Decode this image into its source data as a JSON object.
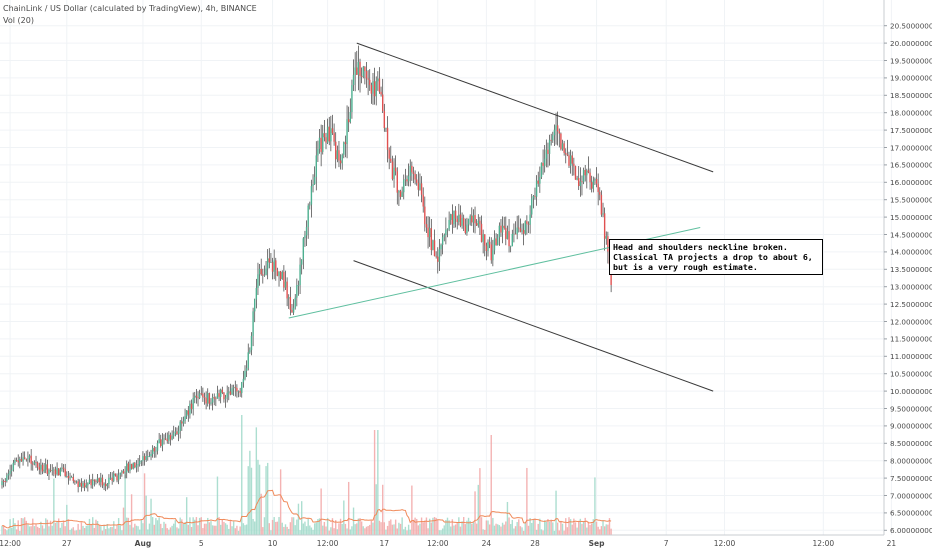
{
  "legend": {
    "title": "ChainLink / US Dollar (calculated by TradingView), 4h, BINANCE",
    "volume": "Vol (20)"
  },
  "annotation": {
    "text": "Head and shoulders neckline broken.  Classical TA projects a drop to about 6, but is a very rough estimate."
  },
  "colors": {
    "up": "#4caf8f",
    "down": "#e05050",
    "wick": "#3a3a3a",
    "volume_up": "#9ed8c8",
    "volume_down": "#f2a6a6",
    "volume_ma": "#f08a5a",
    "trendline": "#3a3a3a",
    "neckline": "#5fbf9f",
    "grid": "#f0f3f6",
    "axis_text": "#4a4a4a"
  },
  "chart_data": {
    "type": "candlestick",
    "symbol": "ChainLink / US Dollar",
    "timeframe": "4h",
    "exchange": "BINANCE",
    "y_axis": {
      "side": "right",
      "range": [
        5.75,
        20.6
      ],
      "ticks": [
        "20.50000000",
        "20.00000000",
        "19.50000000",
        "19.00000000",
        "18.50000000",
        "18.00000000",
        "17.50000000",
        "17.00000000",
        "16.50000000",
        "16.00000000",
        "15.50000000",
        "15.00000000",
        "14.50000000",
        "14.00000000",
        "13.50000000",
        "13.00000000",
        "12.50000000",
        "12.00000000",
        "11.50000000",
        "11.00000000",
        "10.50000000",
        "10.00000000",
        "9.50000000",
        "9.00000000",
        "8.50000000",
        "8.00000000",
        "7.50000000",
        "7.00000000",
        "6.50000000",
        "6.00000000"
      ]
    },
    "x_axis": {
      "ticks": [
        "12:00",
        "27",
        "Aug",
        "5",
        "10",
        "12:00",
        "17",
        "12:00",
        "24",
        "28",
        "Sep",
        "7",
        "12:00",
        "12:00",
        "21"
      ],
      "tick_bars": [
        5,
        40,
        87,
        123,
        167,
        201,
        236,
        269,
        299,
        329,
        367,
        410,
        446,
        507,
        549
      ],
      "total_bars": 560
    },
    "grid": true,
    "volume_overlay": true,
    "close_path": [
      [
        0,
        7.3
      ],
      [
        8,
        7.95
      ],
      [
        16,
        8.05
      ],
      [
        24,
        7.8
      ],
      [
        32,
        7.7
      ],
      [
        40,
        7.65
      ],
      [
        48,
        7.25
      ],
      [
        56,
        7.45
      ],
      [
        64,
        7.35
      ],
      [
        72,
        7.6
      ],
      [
        80,
        7.9
      ],
      [
        88,
        8.05
      ],
      [
        96,
        8.45
      ],
      [
        104,
        8.7
      ],
      [
        112,
        9.15
      ],
      [
        118,
        9.7
      ],
      [
        124,
        9.8
      ],
      [
        132,
        9.8
      ],
      [
        140,
        10.0
      ],
      [
        146,
        9.9
      ],
      [
        152,
        10.95
      ],
      [
        155,
        12.1
      ],
      [
        158,
        13.3
      ],
      [
        164,
        13.7
      ],
      [
        172,
        13.4
      ],
      [
        180,
        12.2
      ],
      [
        186,
        14.2
      ],
      [
        190,
        15.6
      ],
      [
        196,
        17.0
      ],
      [
        202,
        17.4
      ],
      [
        208,
        16.7
      ],
      [
        212,
        17.2
      ],
      [
        216,
        18.7
      ],
      [
        220,
        19.3
      ],
      [
        226,
        18.9
      ],
      [
        232,
        18.7
      ],
      [
        236,
        17.8
      ],
      [
        240,
        16.5
      ],
      [
        246,
        15.7
      ],
      [
        250,
        16.2
      ],
      [
        256,
        16.2
      ],
      [
        262,
        14.8
      ],
      [
        268,
        13.8
      ],
      [
        274,
        14.6
      ],
      [
        280,
        15.2
      ],
      [
        286,
        14.7
      ],
      [
        292,
        14.9
      ],
      [
        298,
        14.3
      ],
      [
        302,
        14.0
      ],
      [
        308,
        14.8
      ],
      [
        314,
        14.3
      ],
      [
        320,
        14.6
      ],
      [
        326,
        15.1
      ],
      [
        330,
        16.0
      ],
      [
        336,
        17.0
      ],
      [
        342,
        17.4
      ],
      [
        346,
        17.2
      ],
      [
        350,
        16.6
      ],
      [
        356,
        16.1
      ],
      [
        362,
        16.2
      ],
      [
        368,
        15.8
      ],
      [
        372,
        14.6
      ],
      [
        376,
        13.6
      ]
    ],
    "overlays": {
      "upper_trendline": [
        [
          219,
          20.0
        ],
        [
          439,
          16.3
        ]
      ],
      "lower_trendline": [
        [
          217,
          13.75
        ],
        [
          439,
          10.0
        ]
      ],
      "neckline": [
        [
          177,
          12.1
        ],
        [
          431,
          14.7
        ]
      ]
    }
  }
}
